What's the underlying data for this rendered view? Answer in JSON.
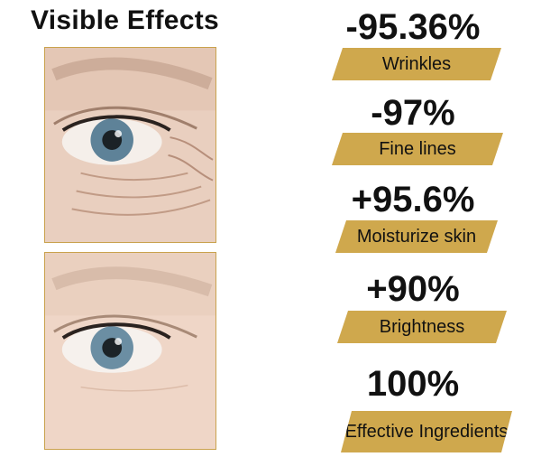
{
  "header": {
    "title": "Visible Effects"
  },
  "colors": {
    "accent": "#cfa84d",
    "frame": "#c9a24d"
  },
  "images": {
    "before": "aged eye skin with wrinkles",
    "after": "smoother eye skin"
  },
  "stats": [
    {
      "value": "-95.36%",
      "label": "Wrinkles"
    },
    {
      "value": "-97%",
      "label": "Fine lines"
    },
    {
      "value": "+95.6%",
      "label": "Moisturize skin"
    },
    {
      "value": "+90%",
      "label": "Brightness"
    },
    {
      "value": "100%",
      "label": "Effective Ingredients"
    }
  ]
}
